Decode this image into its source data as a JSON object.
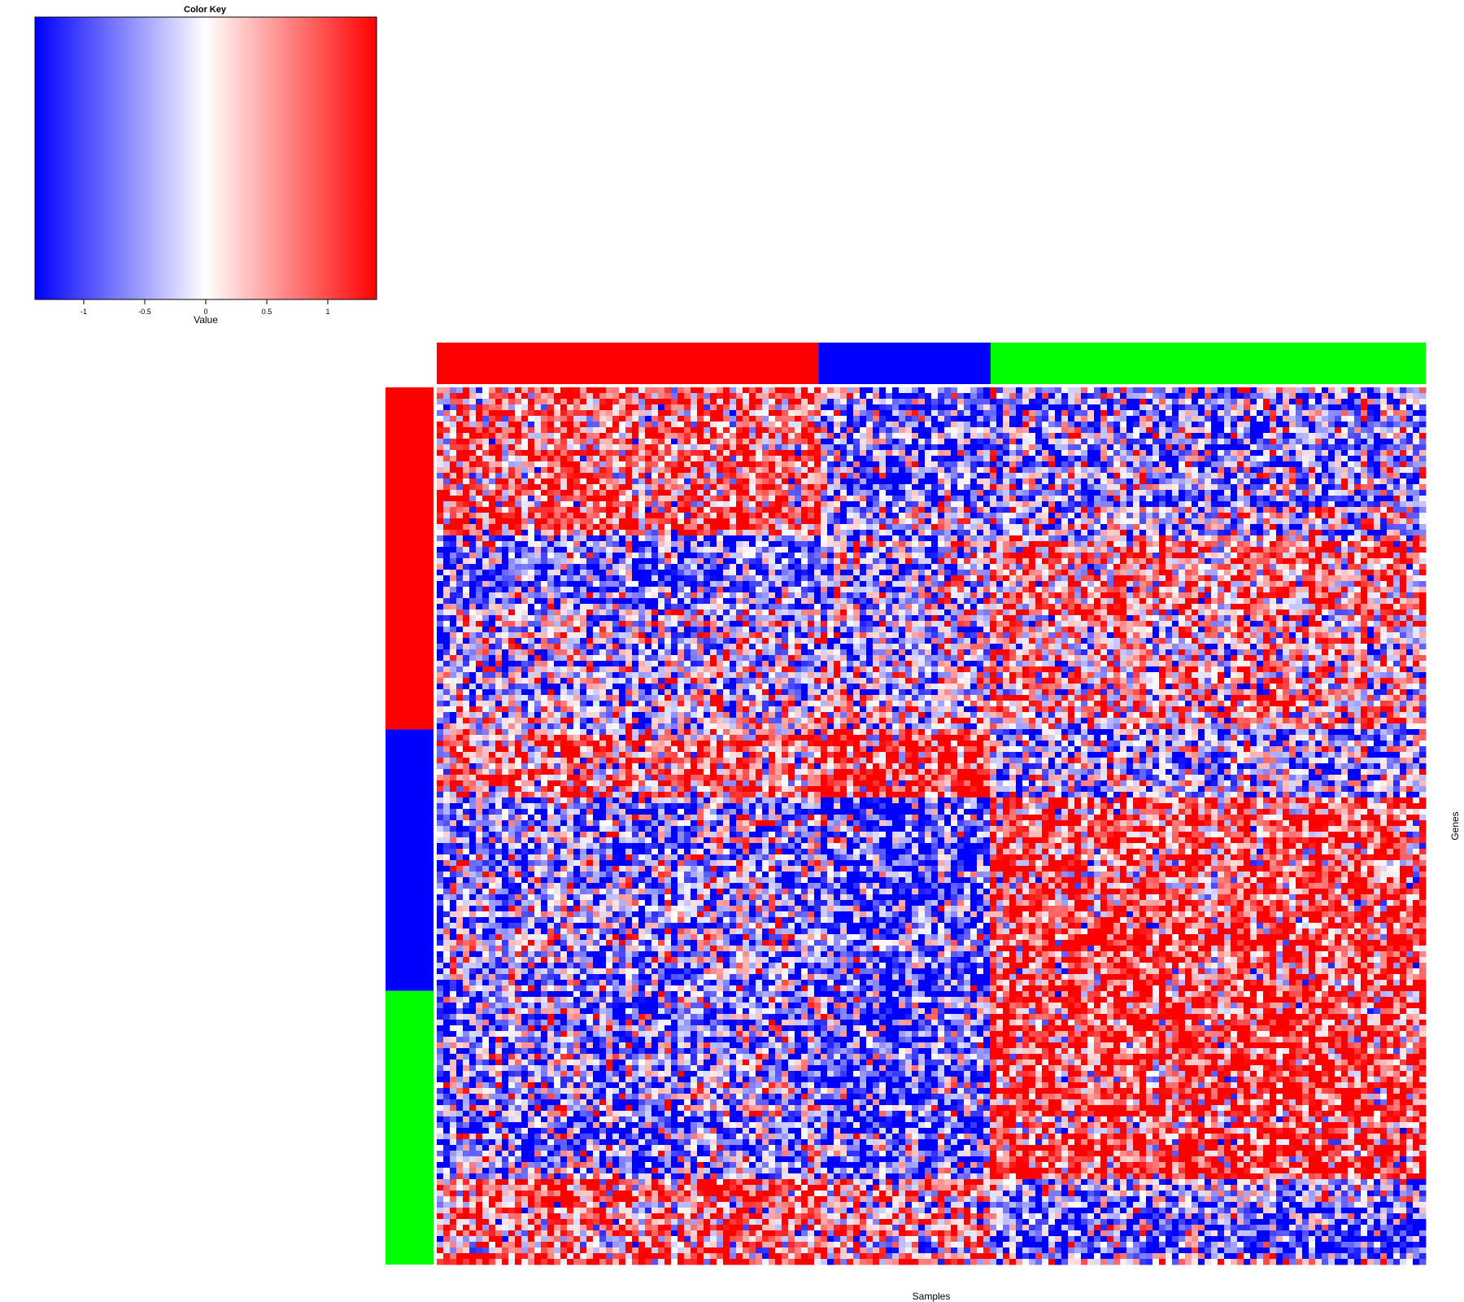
{
  "chart_data": {
    "type": "heatmap",
    "xlabel": "Samples",
    "ylabel": "Genes",
    "color_key": {
      "title": "Color Key",
      "xlabel": "Value",
      "ticks": [
        -1,
        -0.5,
        0,
        0.5,
        1
      ],
      "tick_labels": [
        "-1",
        "-0.5",
        "0",
        "0.5",
        "1"
      ],
      "range": [
        -1.4,
        1.4
      ],
      "low_color": "#0000ff",
      "mid_color": "#ffffff",
      "high_color": "#ff0000"
    },
    "column_groups": [
      {
        "color": "#ff0000",
        "fraction": 0.386
      },
      {
        "color": "#0000ff",
        "fraction": 0.174
      },
      {
        "color": "#00ff00",
        "fraction": 0.44
      }
    ],
    "row_groups": [
      {
        "color": "#ff0000",
        "fraction": 0.39
      },
      {
        "color": "#0000ff",
        "fraction": 0.298
      },
      {
        "color": "#00ff00",
        "fraction": 0.312
      }
    ],
    "block_pattern": {
      "note_rows": "row bands of the heatmap, as fractions of total height",
      "rows": [
        {
          "fraction": 0.17,
          "mean": [
            0.7,
            -0.6,
            -0.5
          ]
        },
        {
          "fraction": 0.085,
          "mean": [
            -0.7,
            -0.3,
            0.6
          ]
        },
        {
          "fraction": 0.135,
          "mean": [
            -0.2,
            -0.2,
            0.25
          ]
        },
        {
          "fraction": 0.075,
          "mean": [
            0.5,
            0.9,
            -0.5
          ]
        },
        {
          "fraction": 0.215,
          "mean": [
            -0.5,
            -1.0,
            0.8
          ]
        },
        {
          "fraction": 0.225,
          "mean": [
            -0.6,
            -0.9,
            0.85
          ]
        },
        {
          "fraction": 0.095,
          "mean": [
            0.7,
            0.3,
            -0.6
          ]
        }
      ]
    }
  }
}
